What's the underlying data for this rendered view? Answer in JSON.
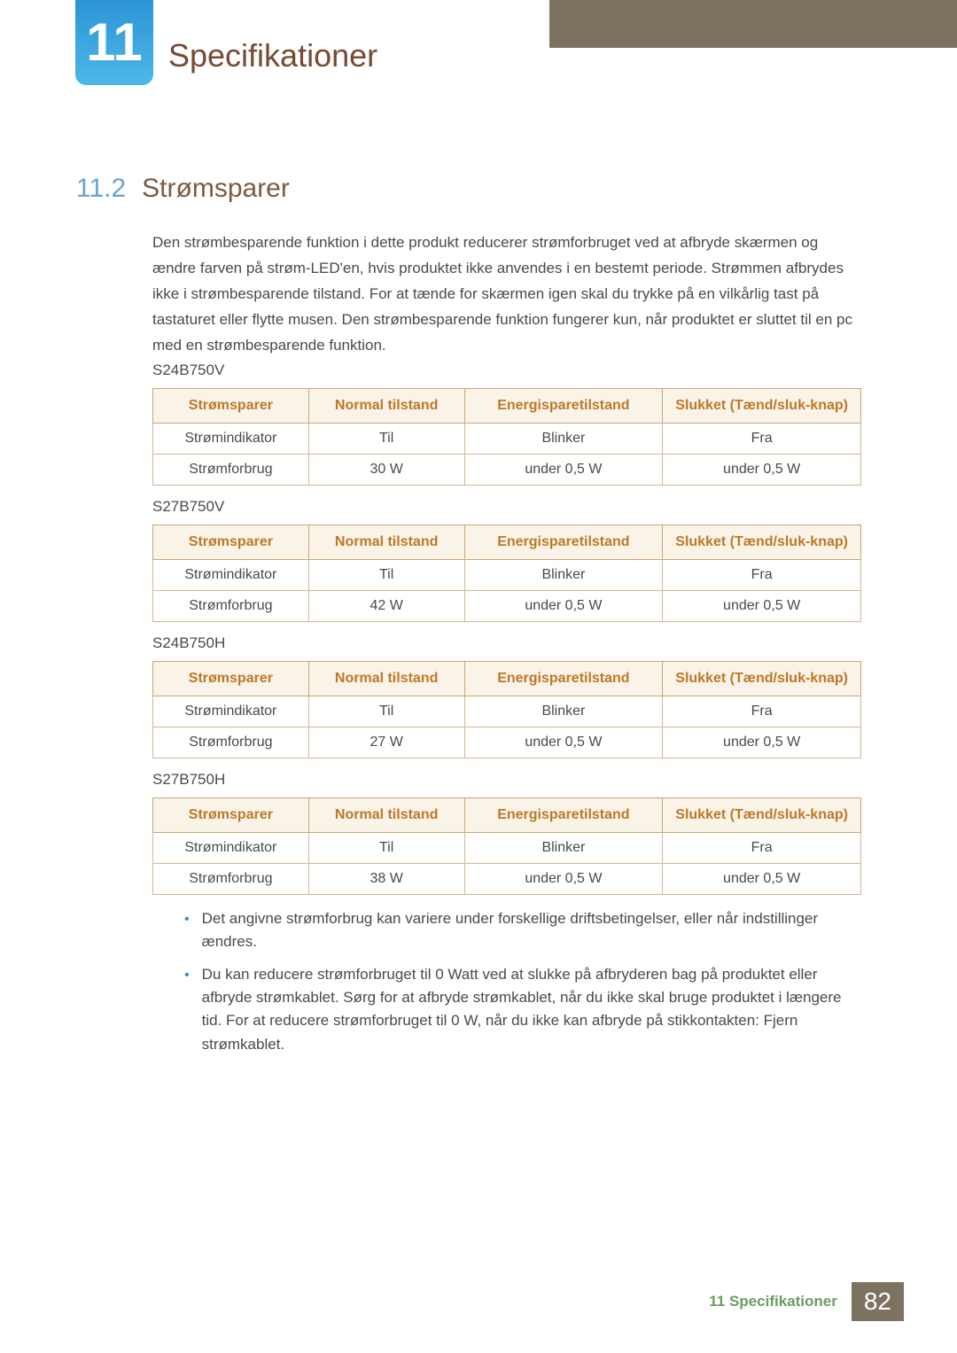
{
  "chapter": {
    "number": "11",
    "title": "Specifikationer"
  },
  "section": {
    "number": "11.2",
    "title": "Strømsparer",
    "intro": "Den strømbesparende funktion i dette produkt reducerer strømforbruget ved at afbryde skærmen og ændre farven på strøm-LED'en, hvis produktet ikke anvendes i en bestemt periode. Strømmen afbrydes ikke i strømbesparende tilstand. For at tænde for skærmen igen skal du trykke på en vilkårlig tast på tastaturet eller flytte musen. Den strømbesparende funktion fungerer kun, når produktet er sluttet til en pc med en strømbesparende funktion."
  },
  "table_headers": {
    "col1": "Strømsparer",
    "col2": "Normal tilstand",
    "col3": "Energisparetilstand",
    "col4": "Slukket (Tænd/sluk-knap)"
  },
  "row_labels": {
    "indicator": "Strømindikator",
    "consumption": "Strømforbrug"
  },
  "common_values": {
    "on": "Til",
    "blinks": "Blinker",
    "off": "Fra",
    "under05": "under 0,5 W"
  },
  "models": [
    {
      "name": "S24B750V",
      "normal_power": "30 W"
    },
    {
      "name": "S27B750V",
      "normal_power": "42 W"
    },
    {
      "name": "S24B750H",
      "normal_power": "27 W"
    },
    {
      "name": "S27B750H",
      "normal_power": "38 W"
    }
  ],
  "notes": [
    "Det angivne strømforbrug kan variere under forskellige driftsbetingelser, eller når indstillinger ændres.",
    "Du kan reducere strømforbruget til 0 Watt ved at slukke på afbryderen bag på produktet eller afbryde strømkablet. Sørg for at afbryde strømkablet, når du ikke skal bruge produktet i længere tid. For at reducere strømforbruget til 0 W, når du ikke kan afbryde på stikkontakten: Fjern strømkablet."
  ],
  "footer": {
    "chapter_ref": "11 Specifikationer",
    "page": "82"
  },
  "colors": {
    "top_bar": "#7d7260",
    "badge_top": "#2c94d6",
    "badge_bottom": "#4db8e8",
    "chapter_title": "#764a34",
    "section_number": "#63a5d6",
    "section_title": "#7d5a3e",
    "table_header_bg": "#faf3e8",
    "table_header_text": "#be7828",
    "table_border": "#c9a678",
    "bullet": "#3a8fc8",
    "footer_text": "#6b9d60"
  }
}
